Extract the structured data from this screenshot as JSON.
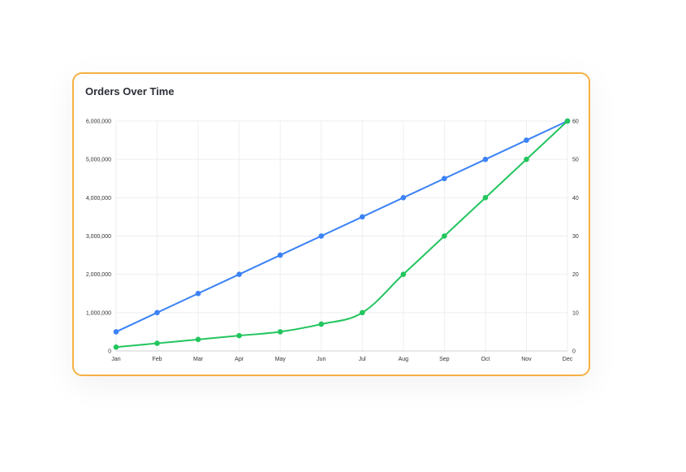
{
  "card": {
    "title": "Orders Over Time"
  },
  "colors": {
    "border": "#f5b041",
    "series_left": "#3b82f6",
    "series_right": "#22c55e",
    "grid": "#eeeeee"
  },
  "chart_data": {
    "type": "line",
    "title": "Orders Over Time",
    "categories": [
      "Jan",
      "Feb",
      "Mar",
      "Apr",
      "May",
      "Jun",
      "Jul",
      "Aug",
      "Sep",
      "Oct",
      "Nov",
      "Dec"
    ],
    "y_left": {
      "ylim": [
        0,
        6000000
      ],
      "ticks": [
        "0",
        "1,000,000",
        "2,000,000",
        "3,000,000",
        "4,000,000",
        "5,000,000",
        "6,000,000"
      ]
    },
    "y_right": {
      "ylim": [
        0,
        60
      ],
      "ticks": [
        "0",
        "10",
        "20",
        "30",
        "40",
        "50",
        "60"
      ]
    },
    "series": [
      {
        "axis": "left",
        "color": "#3b82f6",
        "smooth": false,
        "values": [
          500000,
          1000000,
          1500000,
          2000000,
          2500000,
          3000000,
          3500000,
          4000000,
          4500000,
          5000000,
          5500000,
          6000000
        ]
      },
      {
        "axis": "right",
        "color": "#22c55e",
        "smooth": true,
        "values": [
          1,
          2,
          3,
          4,
          5,
          7,
          10,
          20,
          30,
          40,
          50,
          60
        ]
      }
    ],
    "grid": true,
    "legend": "none"
  }
}
